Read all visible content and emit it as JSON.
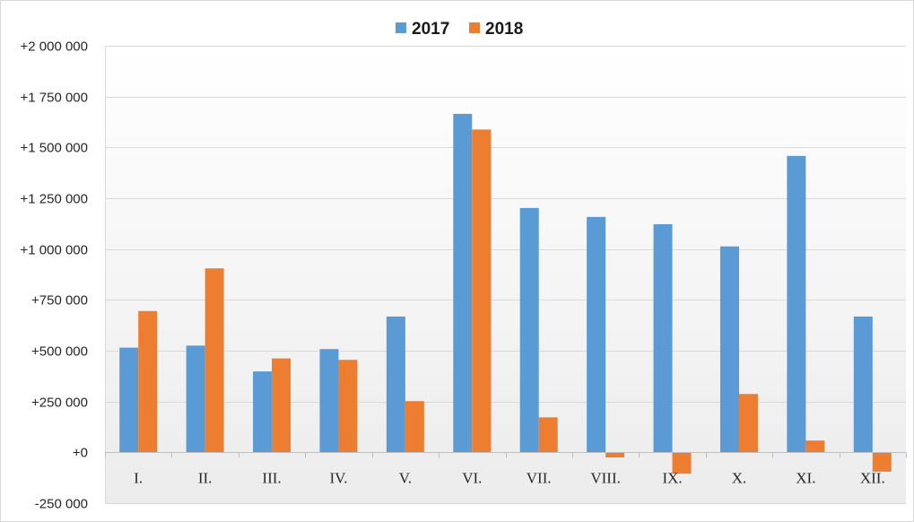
{
  "chart_data": {
    "type": "bar",
    "categories": [
      "I.",
      "II.",
      "III.",
      "IV.",
      "V.",
      "VI.",
      "VII.",
      "VIII.",
      "IX.",
      "X.",
      "XI.",
      "XII."
    ],
    "series": [
      {
        "name": "2017",
        "color": "#5b9bd5",
        "values": [
          515000,
          525000,
          398000,
          508000,
          668000,
          1665000,
          1202000,
          1158000,
          1122000,
          1013000,
          1458000,
          668000
        ]
      },
      {
        "name": "2018",
        "color": "#ed7d31",
        "values": [
          695000,
          905000,
          462000,
          455000,
          252000,
          1588000,
          172000,
          -25000,
          -105000,
          287000,
          58000,
          -95000
        ]
      }
    ],
    "ylim": [
      -250000,
      2000000
    ],
    "yticks": [
      -250000,
      0,
      250000,
      500000,
      750000,
      1000000,
      1250000,
      1500000,
      1750000,
      2000000
    ],
    "ytick_labels": [
      "-250 000",
      "+0",
      "+250 000",
      "+500 000",
      "+750 000",
      "+1 000 000",
      "+1 250 000",
      "+1 500 000",
      "+1 750 000",
      "+2 000 000"
    ],
    "legend_position": "top",
    "grid": true
  }
}
